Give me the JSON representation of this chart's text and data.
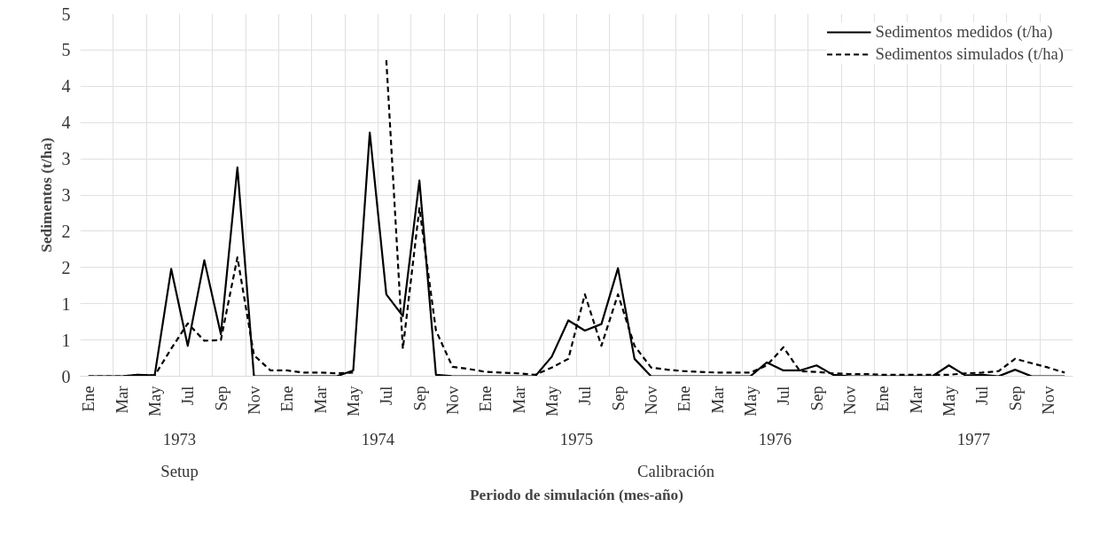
{
  "chart_data": {
    "type": "line",
    "xlabel": "Periodo de simulación (mes-año)",
    "ylabel": "Sedimentos (t/ha)",
    "categories": [
      "Ene",
      null,
      "Mar",
      null,
      "May",
      null,
      "Jul",
      null,
      "Sep",
      null,
      "Nov",
      null,
      "Ene",
      null,
      "Mar",
      null,
      "May",
      null,
      "Jul",
      null,
      "Sep",
      null,
      "Nov",
      null,
      "Ene",
      null,
      "Mar",
      null,
      "May",
      null,
      "Jul",
      null,
      "Sep",
      null,
      "Nov",
      null,
      "Ene",
      null,
      "Mar",
      null,
      "May",
      null,
      "Jul",
      null,
      "Sep",
      null,
      "Nov",
      null,
      "Ene",
      null,
      "Mar",
      null,
      "May",
      null,
      "Jul",
      null,
      "Sep",
      null,
      "Nov",
      null
    ],
    "series": [
      {
        "name": "Sedimentos medidos (t/ha)",
        "color": "#000000",
        "line_style": "solid",
        "values": [
          0,
          0,
          0,
          0.02,
          0.01,
          1.48,
          0.42,
          1.6,
          0.58,
          2.88,
          0,
          0,
          0,
          0,
          0,
          0,
          0.08,
          3.36,
          1.13,
          0.83,
          2.7,
          0.02,
          0,
          0,
          0,
          0,
          0,
          0,
          0.27,
          0.77,
          0.63,
          0.72,
          1.49,
          0.24,
          0,
          0,
          0,
          0,
          0,
          0,
          0,
          0.19,
          0.08,
          0.08,
          0.15,
          0.02,
          0,
          0,
          0,
          0,
          0,
          0,
          0.15,
          0.01,
          0.02,
          0,
          0.09,
          0,
          0,
          0
        ]
      },
      {
        "name": "Sedimentos simulados (t/ha)",
        "color": "#000000",
        "line_style": "dashed",
        "values": [
          0,
          0,
          0,
          0.02,
          0.01,
          0.38,
          0.73,
          0.49,
          0.5,
          1.64,
          0.29,
          0.08,
          0.08,
          0.05,
          0.05,
          0.04,
          0.05,
          null,
          4.36,
          0.38,
          2.32,
          0.63,
          0.13,
          0.1,
          0.06,
          0.05,
          0.04,
          0.02,
          0.12,
          0.24,
          1.13,
          0.42,
          1.13,
          0.42,
          0.12,
          0.09,
          0.07,
          0.06,
          0.05,
          0.05,
          0.05,
          0.15,
          0.4,
          0.07,
          0.06,
          0.04,
          0.03,
          0.03,
          0.02,
          0.02,
          0.02,
          0.02,
          0.02,
          0.04,
          0.05,
          0.07,
          0.24,
          0.18,
          0.12,
          0.05
        ]
      }
    ],
    "ylim": [
      0,
      5
    ],
    "yticks": [
      0,
      {
        "value": 0.5,
        "label": "1"
      },
      1,
      {
        "value": 1.5,
        "label": "2"
      },
      2,
      {
        "value": 2.5,
        "label": "3"
      },
      3,
      {
        "value": 3.5,
        "label": "4"
      },
      4,
      {
        "value": 4.5,
        "label": "5"
      },
      5
    ],
    "grid": true,
    "legend": "top right",
    "annotations": [
      "1973",
      "1974",
      "1975",
      "1976",
      "1977",
      "Setup",
      "Calibración"
    ]
  }
}
